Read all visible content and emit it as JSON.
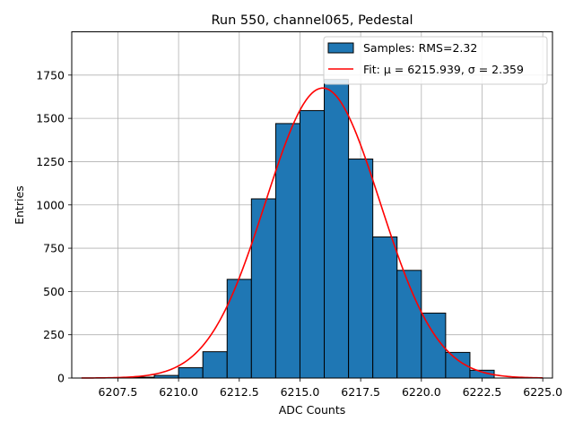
{
  "chart_data": {
    "type": "bar",
    "title": "Run 550, channel065, Pedestal",
    "xlabel": "ADC Counts",
    "ylabel": "Entries",
    "xlim": [
      6205.6,
      6225.4
    ],
    "ylim": [
      0,
      2000
    ],
    "xticks": [
      6207.5,
      6210.0,
      6212.5,
      6215.0,
      6217.5,
      6220.0,
      6222.5,
      6225.0
    ],
    "xtick_labels": [
      "6207.5",
      "6210.0",
      "6212.5",
      "6215.0",
      "6217.5",
      "6220.0",
      "6222.5",
      "6225.0"
    ],
    "yticks": [
      0,
      250,
      500,
      750,
      1000,
      1250,
      1500,
      1750
    ],
    "ytick_labels": [
      "0",
      "250",
      "500",
      "750",
      "1000",
      "1250",
      "1500",
      "1750"
    ],
    "grid": true,
    "legend_position": "top-right",
    "series": [
      {
        "name": "Samples: RMS=2.32",
        "kind": "histogram",
        "color": "#1f77b4",
        "edge_color": "#000000",
        "bins": [
          {
            "x0": 6208,
            "x1": 6209,
            "count": 5
          },
          {
            "x0": 6209,
            "x1": 6210,
            "count": 15
          },
          {
            "x0": 6210,
            "x1": 6211,
            "count": 60
          },
          {
            "x0": 6211,
            "x1": 6212,
            "count": 152
          },
          {
            "x0": 6212,
            "x1": 6213,
            "count": 570
          },
          {
            "x0": 6213,
            "x1": 6214,
            "count": 1035
          },
          {
            "x0": 6214,
            "x1": 6215,
            "count": 1470
          },
          {
            "x0": 6215,
            "x1": 6216,
            "count": 1545
          },
          {
            "x0": 6216,
            "x1": 6217,
            "count": 1725
          },
          {
            "x0": 6217,
            "x1": 6218,
            "count": 1265
          },
          {
            "x0": 6218,
            "x1": 6219,
            "count": 815
          },
          {
            "x0": 6219,
            "x1": 6220,
            "count": 622
          },
          {
            "x0": 6220,
            "x1": 6221,
            "count": 375
          },
          {
            "x0": 6221,
            "x1": 6222,
            "count": 148
          },
          {
            "x0": 6222,
            "x1": 6223,
            "count": 45
          }
        ]
      },
      {
        "name": "Fit: μ = 6215.939, σ = 2.359",
        "kind": "gaussian",
        "color": "#ff0000",
        "mu": 6215.939,
        "sigma": 2.359,
        "amplitude": 1675,
        "x_range": [
          6206,
          6225
        ]
      }
    ]
  }
}
